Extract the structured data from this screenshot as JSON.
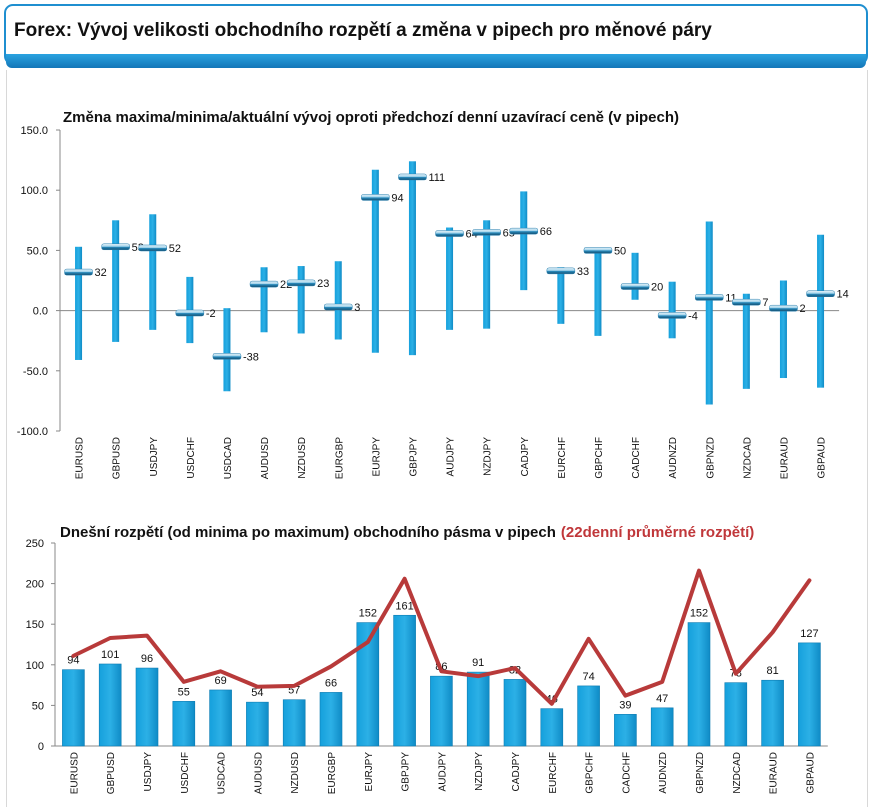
{
  "header": {
    "title": "Forex: Vývoj velikosti obchodního rozpětí a změna v pipech pro měnové páry"
  },
  "colors": {
    "bar": "#1b9fd3",
    "line": "#b83a3a",
    "accent": "#1f8fd0",
    "subtitle": "#c0373a"
  },
  "chart_data": [
    {
      "type": "bar",
      "title": "Změna maxima/minima/aktuální vývoj oproti předchozí denní uzavírací ceně (v pipech)",
      "categories": [
        "EURUSD",
        "GBPUSD",
        "USDJPY",
        "USDCHF",
        "USDCAD",
        "AUDUSD",
        "NZDUSD",
        "EURGBP",
        "EURJPY",
        "GBPJPY",
        "AUDJPY",
        "NZDJPY",
        "CADJPY",
        "EURCHF",
        "GBPCHF",
        "CADCHF",
        "AUDNZD",
        "GBPNZD",
        "NZDCAD",
        "EURAUD",
        "GBPAUD"
      ],
      "series": [
        {
          "values": [
            53,
            75,
            80,
            28,
            2,
            36,
            37,
            41,
            117,
            124,
            69,
            75,
            99,
            36,
            52,
            48,
            24,
            74,
            14,
            25,
            63
          ]
        },
        {
          "values": [
            -41,
            -26,
            -16,
            -27,
            -67,
            -18,
            -19,
            -24,
            -35,
            -37,
            -16,
            -15,
            17,
            -11,
            -21,
            9,
            -23,
            -78,
            -65,
            -56,
            -64
          ]
        },
        {
          "values": [
            32,
            53,
            52,
            -2,
            -38,
            22,
            23,
            3,
            94,
            111,
            64,
            65,
            66,
            33,
            50,
            20,
            -4,
            11,
            7,
            2,
            14
          ]
        }
      ],
      "ylim": [
        -100,
        150
      ],
      "yticks": [
        "150.0",
        "100.0",
        "50.0",
        "0.0",
        "-50.0",
        "-100.0"
      ],
      "ytick_values": [
        150,
        100,
        50,
        0,
        -50,
        -100
      ]
    },
    {
      "type": "bar",
      "title": "Dnešní rozpětí (od minima po maximum) obchodního pásma v pipech",
      "subtitle": "(22denní průměrné rozpětí)",
      "categories": [
        "EURUSD",
        "GBPUSD",
        "USDJPY",
        "USDCHF",
        "USDCAD",
        "AUDUSD",
        "NZDUSD",
        "EURGBP",
        "EURJPY",
        "GBPJPY",
        "AUDJPY",
        "NZDJPY",
        "CADJPY",
        "EURCHF",
        "GBPCHF",
        "CADCHF",
        "AUDNZD",
        "GBPNZD",
        "NZDCAD",
        "EURAUD",
        "GBPAUD"
      ],
      "series": [
        {
          "values": [
            94,
            101,
            96,
            55,
            69,
            54,
            57,
            66,
            152,
            161,
            86,
            91,
            82,
            46,
            74,
            39,
            47,
            152,
            78,
            81,
            127
          ]
        },
        {
          "name": "(22denní průměrné rozpětí)",
          "values": [
            111,
            133,
            136,
            79,
            92,
            73,
            74,
            98,
            128,
            206,
            92,
            86,
            96,
            52,
            132,
            62,
            79,
            216,
            89,
            140,
            204
          ]
        }
      ],
      "ylim": [
        0,
        250
      ],
      "yticks": [
        "250",
        "200",
        "150",
        "100",
        "50",
        "0"
      ],
      "ytick_values": [
        250,
        200,
        150,
        100,
        50,
        0
      ]
    }
  ]
}
